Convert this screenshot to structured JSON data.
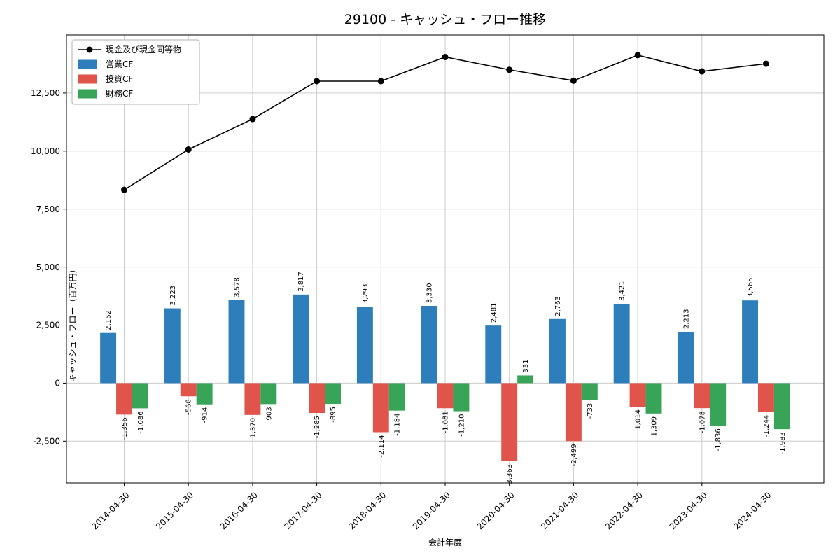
{
  "chart_data": {
    "type": "bar",
    "title": "29100 - キャッシュ・フロー推移",
    "xlabel": "会計年度",
    "ylabel": "キャッシュ・フロー（百万円）",
    "categories": [
      "2014-04-30",
      "2015-04-30",
      "2016-04-30",
      "2017-04-30",
      "2018-04-30",
      "2019-04-30",
      "2020-04-30",
      "2021-04-30",
      "2022-04-30",
      "2023-04-30",
      "2024-04-30"
    ],
    "series": [
      {
        "name": "営業CF",
        "type": "bar",
        "color": "#2e7ebc",
        "values": [
          2162,
          3223,
          3578,
          3817,
          3293,
          3330,
          2481,
          2763,
          3421,
          2213,
          3565
        ]
      },
      {
        "name": "投資CF",
        "type": "bar",
        "color": "#e0544b",
        "values": [
          -1356,
          -568,
          -1370,
          -1285,
          -2114,
          -1081,
          -3363,
          -2499,
          -1014,
          -1078,
          -1244
        ]
      },
      {
        "name": "財務CF",
        "type": "bar",
        "color": "#38a458",
        "values": [
          -1086,
          -914,
          -903,
          -895,
          -1184,
          -1210,
          331,
          -733,
          -1309,
          -1836,
          -1983
        ]
      }
    ],
    "line_series": {
      "name": "現金及び現金同等物",
      "color": "#000000",
      "marker": "circle",
      "values": [
        8330,
        10070,
        11380,
        13010,
        13010,
        14050,
        13500,
        13030,
        14130,
        13430,
        13760
      ]
    },
    "ylim": [
      -4300,
      15000
    ],
    "yticks": [
      -2500,
      0,
      2500,
      5000,
      7500,
      10000,
      12500
    ],
    "grid": true,
    "legend_position": "upper left",
    "legend_entries": [
      "現金及び現金同等物",
      "営業CF",
      "投資CF",
      "財務CF"
    ],
    "colors": {
      "grid": "#cccccc",
      "axis": "#000000",
      "background": "#ffffff",
      "legend_border": "#b0b0b0"
    }
  }
}
